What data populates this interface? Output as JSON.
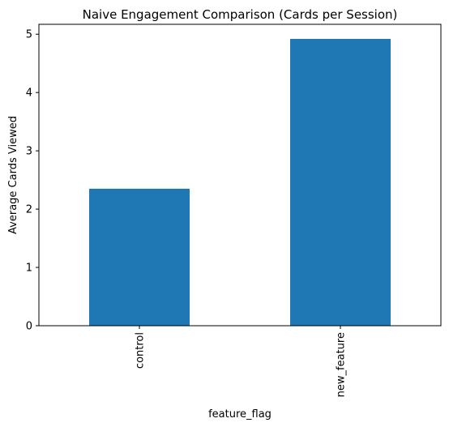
{
  "chart_data": {
    "type": "bar",
    "title": "Naive Engagement Comparison (Cards per Session)",
    "xlabel": "feature_flag",
    "ylabel": "Average Cards Viewed",
    "categories": [
      "control",
      "new_feature"
    ],
    "values": [
      2.35,
      4.92
    ],
    "ylim": [
      0,
      5.17
    ],
    "yticks": [
      0,
      1,
      2,
      3,
      4,
      5
    ],
    "bar_color": "#1f77b4",
    "grid": false,
    "legend": "none"
  }
}
